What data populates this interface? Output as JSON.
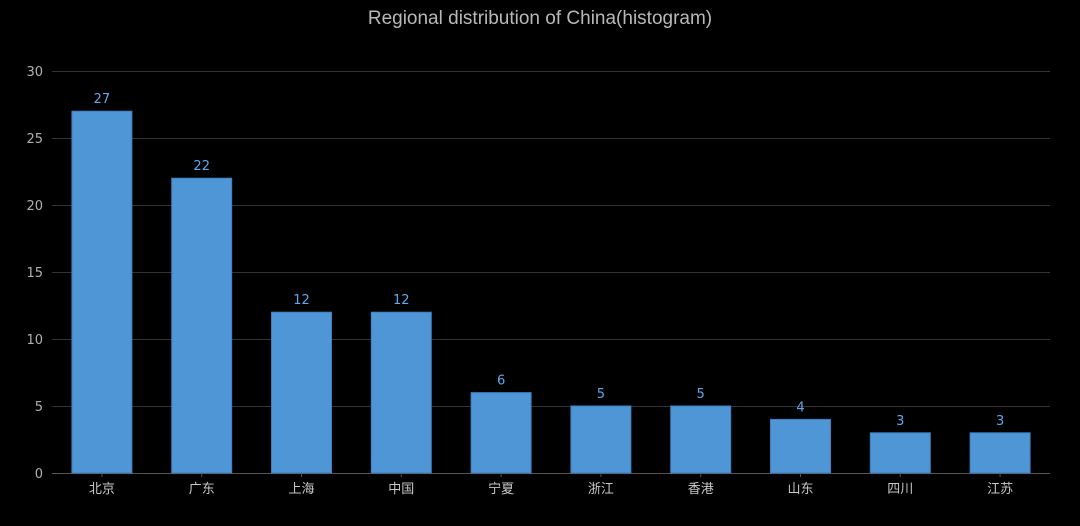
{
  "chart_data": {
    "type": "bar",
    "title": "Regional distribution of China(histogram)",
    "categories": [
      "北京",
      "广东",
      "上海",
      "中国",
      "宁夏",
      "浙江",
      "香港",
      "山东",
      "四川",
      "江苏"
    ],
    "values": [
      27,
      22,
      12,
      12,
      6,
      5,
      5,
      4,
      3,
      3
    ],
    "ylim": [
      0,
      30
    ],
    "yticks": [
      0,
      5,
      10,
      15,
      20,
      25,
      30
    ],
    "xlabel": "",
    "ylabel": "",
    "grid": true,
    "legend": "none",
    "show_data_labels": true
  },
  "colors": {
    "background": "#000000",
    "bar": "#4f96d6",
    "bar_border": "#3d7fbf",
    "grid": "#333333",
    "axis": "#555555",
    "title": "#b8b8b8",
    "data_label": "#5fa8ee"
  }
}
